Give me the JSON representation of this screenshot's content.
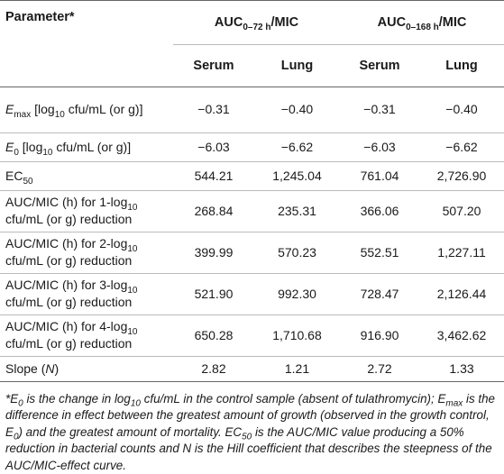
{
  "header": {
    "param_label": "Parameter*",
    "group1": {
      "prefix": "AUC",
      "sub": "0–72 h",
      "suffix": "/MIC"
    },
    "group2": {
      "prefix": "AUC",
      "sub": "0–168 h",
      "suffix": "/MIC"
    },
    "cols": [
      "Serum",
      "Lung",
      "Serum",
      "Lung"
    ]
  },
  "rows": [
    {
      "pre": "",
      "ital": "E",
      "sub": "max",
      "post1": " [log",
      "sub2": "10",
      "post2": " cfu/mL (or g)]",
      "values": [
        "−0.31",
        "−0.40",
        "−0.31",
        "−0.40"
      ]
    },
    {
      "pre": "",
      "ital": "E",
      "sub": "0",
      "post1": " [log",
      "sub2": "10",
      "post2": " cfu/mL (or g)]",
      "values": [
        "−6.03",
        "−6.62",
        "−6.03",
        "−6.62"
      ]
    },
    {
      "pre": "EC",
      "ital": "",
      "sub": "50",
      "post1": "",
      "sub2": "",
      "post2": "",
      "values": [
        "544.21",
        "1,245.04",
        "761.04",
        "2,726.90"
      ]
    },
    {
      "pre": "AUC/MIC (h) for 1-log",
      "ital": "",
      "sub": "10",
      "post1": " cfu/mL (or g) reduction",
      "sub2": "",
      "post2": "",
      "values": [
        "268.84",
        "235.31",
        "366.06",
        "507.20"
      ]
    },
    {
      "pre": "AUC/MIC (h) for 2-log",
      "ital": "",
      "sub": "10",
      "post1": " cfu/mL (or g) reduction",
      "sub2": "",
      "post2": "",
      "values": [
        "399.99",
        "570.23",
        "552.51",
        "1,227.11"
      ]
    },
    {
      "pre": "AUC/MIC (h) for 3-log",
      "ital": "",
      "sub": "10",
      "post1": " cfu/mL (or g) reduction",
      "sub2": "",
      "post2": "",
      "values": [
        "521.90",
        "992.30",
        "728.47",
        "2,126.44"
      ]
    },
    {
      "pre": "AUC/MIC (h) for 4-log",
      "ital": "",
      "sub": "10",
      "post1": " cfu/mL (or g) reduction",
      "sub2": "",
      "post2": "",
      "values": [
        "650.28",
        "1,710.68",
        "916.90",
        "3,462.62"
      ]
    },
    {
      "pre": "Slope (",
      "ital": "N",
      "sub": "",
      "post1": ")",
      "sub2": "",
      "post2": "",
      "values": [
        "2.82",
        "1.21",
        "2.72",
        "1.33"
      ]
    }
  ],
  "footnote": {
    "p1": "*",
    "i1": "E",
    "s1": "0",
    "p2": " is the change in log",
    "s2": "10",
    "p3": " cfu/mL in the control sample (absent of tulathromycin); ",
    "i2": "E",
    "s3": "max",
    "p4": " is the difference in effect between the greatest amount of growth (observed in the growth control, ",
    "i3": "E",
    "s4": "0",
    "p5": ") and the greatest amount of mortality. ",
    "i4": "EC",
    "s5": "50",
    "p6": " is the AUC/MIC value producing a 50% reduction in bacterial counts and ",
    "i5": "N",
    "p7": " is the Hill coefficient that describes the steepness of the AUC/MIC-effect curve."
  }
}
